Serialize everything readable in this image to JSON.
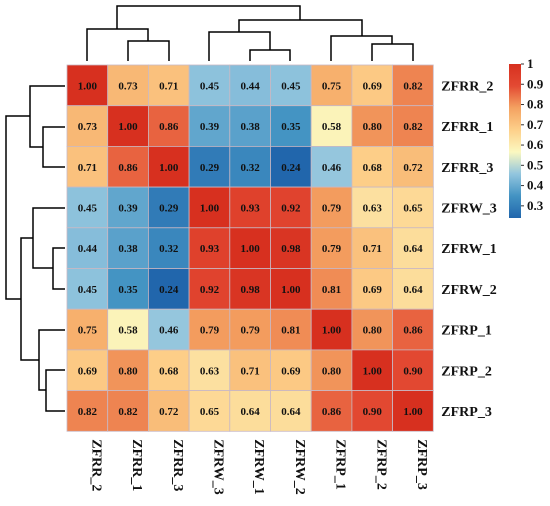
{
  "chart_data": {
    "type": "heatmap",
    "title": "",
    "row_labels": [
      "ZFRR_2",
      "ZFRR_1",
      "ZFRR_3",
      "ZFRW_3",
      "ZFRW_1",
      "ZFRW_2",
      "ZFRP_1",
      "ZFRP_2",
      "ZFRP_3"
    ],
    "col_labels": [
      "ZFRR_2",
      "ZFRR_1",
      "ZFRR_3",
      "ZFRW_3",
      "ZFRW_1",
      "ZFRW_2",
      "ZFRP_1",
      "ZFRP_2",
      "ZFRP_3"
    ],
    "values": [
      [
        1.0,
        0.73,
        0.71,
        0.45,
        0.44,
        0.45,
        0.75,
        0.69,
        0.82
      ],
      [
        0.73,
        1.0,
        0.86,
        0.39,
        0.38,
        0.35,
        0.58,
        0.8,
        0.82
      ],
      [
        0.71,
        0.86,
        1.0,
        0.29,
        0.32,
        0.24,
        0.46,
        0.68,
        0.72
      ],
      [
        0.45,
        0.39,
        0.29,
        1.0,
        0.93,
        0.92,
        0.79,
        0.63,
        0.65
      ],
      [
        0.44,
        0.38,
        0.32,
        0.93,
        1.0,
        0.98,
        0.79,
        0.71,
        0.64
      ],
      [
        0.45,
        0.35,
        0.24,
        0.92,
        0.98,
        1.0,
        0.81,
        0.69,
        0.64
      ],
      [
        0.75,
        0.58,
        0.46,
        0.79,
        0.79,
        0.81,
        1.0,
        0.8,
        0.86
      ],
      [
        0.69,
        0.8,
        0.68,
        0.63,
        0.71,
        0.69,
        0.8,
        1.0,
        0.9
      ],
      [
        0.82,
        0.82,
        0.72,
        0.65,
        0.64,
        0.64,
        0.86,
        0.9,
        1.0
      ]
    ],
    "value_labels": [
      [
        "1.00",
        "0.73",
        "0.71",
        "0.45",
        "0.44",
        "0.45",
        "0.75",
        "0.69",
        "0.82"
      ],
      [
        "0.73",
        "1.00",
        "0.86",
        "0.39",
        "0.38",
        "0.35",
        "0.58",
        "0.80",
        "0.82"
      ],
      [
        "0.71",
        "0.86",
        "1.00",
        "0.29",
        "0.32",
        "0.24",
        "0.46",
        "0.68",
        "0.72"
      ],
      [
        "0.45",
        "0.39",
        "0.29",
        "1.00",
        "0.93",
        "0.92",
        "0.79",
        "0.63",
        "0.65"
      ],
      [
        "0.44",
        "0.38",
        "0.32",
        "0.93",
        "1.00",
        "0.98",
        "0.79",
        "0.71",
        "0.64"
      ],
      [
        "0.45",
        "0.35",
        "0.24",
        "0.92",
        "0.98",
        "1.00",
        "0.81",
        "0.69",
        "0.64"
      ],
      [
        "0.75",
        "0.58",
        "0.46",
        "0.79",
        "0.79",
        "0.81",
        "1.00",
        "0.80",
        "0.86"
      ],
      [
        "0.69",
        "0.80",
        "0.68",
        "0.63",
        "0.71",
        "0.69",
        "0.80",
        "1.00",
        "0.90"
      ],
      [
        "0.82",
        "0.82",
        "0.72",
        "0.65",
        "0.64",
        "0.64",
        "0.86",
        "0.90",
        "1.00"
      ]
    ],
    "color_range": [
      0.24,
      1.0
    ],
    "colormap": [
      "#2166ac",
      "#4393c3",
      "#92c5de",
      "#fbf8c0",
      "#fdd08a",
      "#f4a261",
      "#e34a33",
      "#d7301f"
    ],
    "legend": {
      "placement": "right",
      "ticks": [
        "1",
        "0.9",
        "0.8",
        "0.7",
        "0.6",
        "0.5",
        "0.4",
        "0.3"
      ],
      "tick_values": [
        1.0,
        0.9,
        0.8,
        0.7,
        0.6,
        0.5,
        0.4,
        0.3
      ]
    },
    "dendrograms": [
      "top",
      "left"
    ],
    "grid": true
  }
}
